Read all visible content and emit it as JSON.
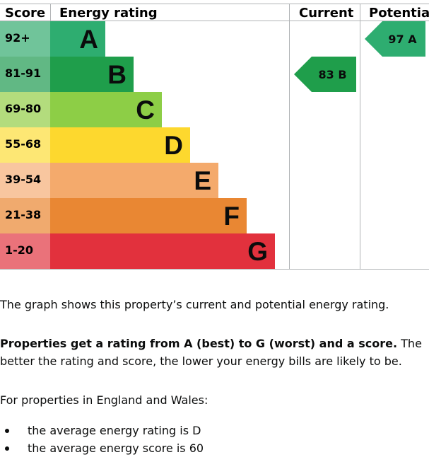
{
  "chart_data": {
    "type": "bar",
    "headers": {
      "score": "Score",
      "rating": "Energy rating",
      "current": "Current",
      "potential": "Potential"
    },
    "bands": [
      {
        "range": "92+",
        "letter": "A",
        "color": "#2ead70",
        "lightColor": "#70c49a"
      },
      {
        "range": "81-91",
        "letter": "B",
        "color": "#1f9e4b",
        "lightColor": "#61b884"
      },
      {
        "range": "69-80",
        "letter": "C",
        "color": "#8dce46",
        "lightColor": "#b3dc7d"
      },
      {
        "range": "55-68",
        "letter": "D",
        "color": "#fdd82e",
        "lightColor": "#fde774"
      },
      {
        "range": "39-54",
        "letter": "E",
        "color": "#f4aa6c",
        "lightColor": "#f8c69f"
      },
      {
        "range": "21-38",
        "letter": "F",
        "color": "#e98733",
        "lightColor": "#f0aa6e"
      },
      {
        "range": "1-20",
        "letter": "G",
        "color": "#e2313d",
        "lightColor": "#ea727a"
      }
    ],
    "current": {
      "score": 83,
      "letter": "B",
      "label": "83  B",
      "color": "#1f9e4b"
    },
    "potential": {
      "score": 97,
      "letter": "A",
      "label": "97  A",
      "color": "#2ead70"
    }
  },
  "text": {
    "intro": "The graph shows this property’s current and potential energy rating.",
    "bold": "Properties get a rating from A (best) to G (worst) and a score.",
    "rest": " The better the rating and score, the lower your energy bills are likely to be.",
    "region": "For properties in England and Wales:",
    "bullets": [
      "the average energy rating is D",
      "the average energy score is 60"
    ]
  }
}
